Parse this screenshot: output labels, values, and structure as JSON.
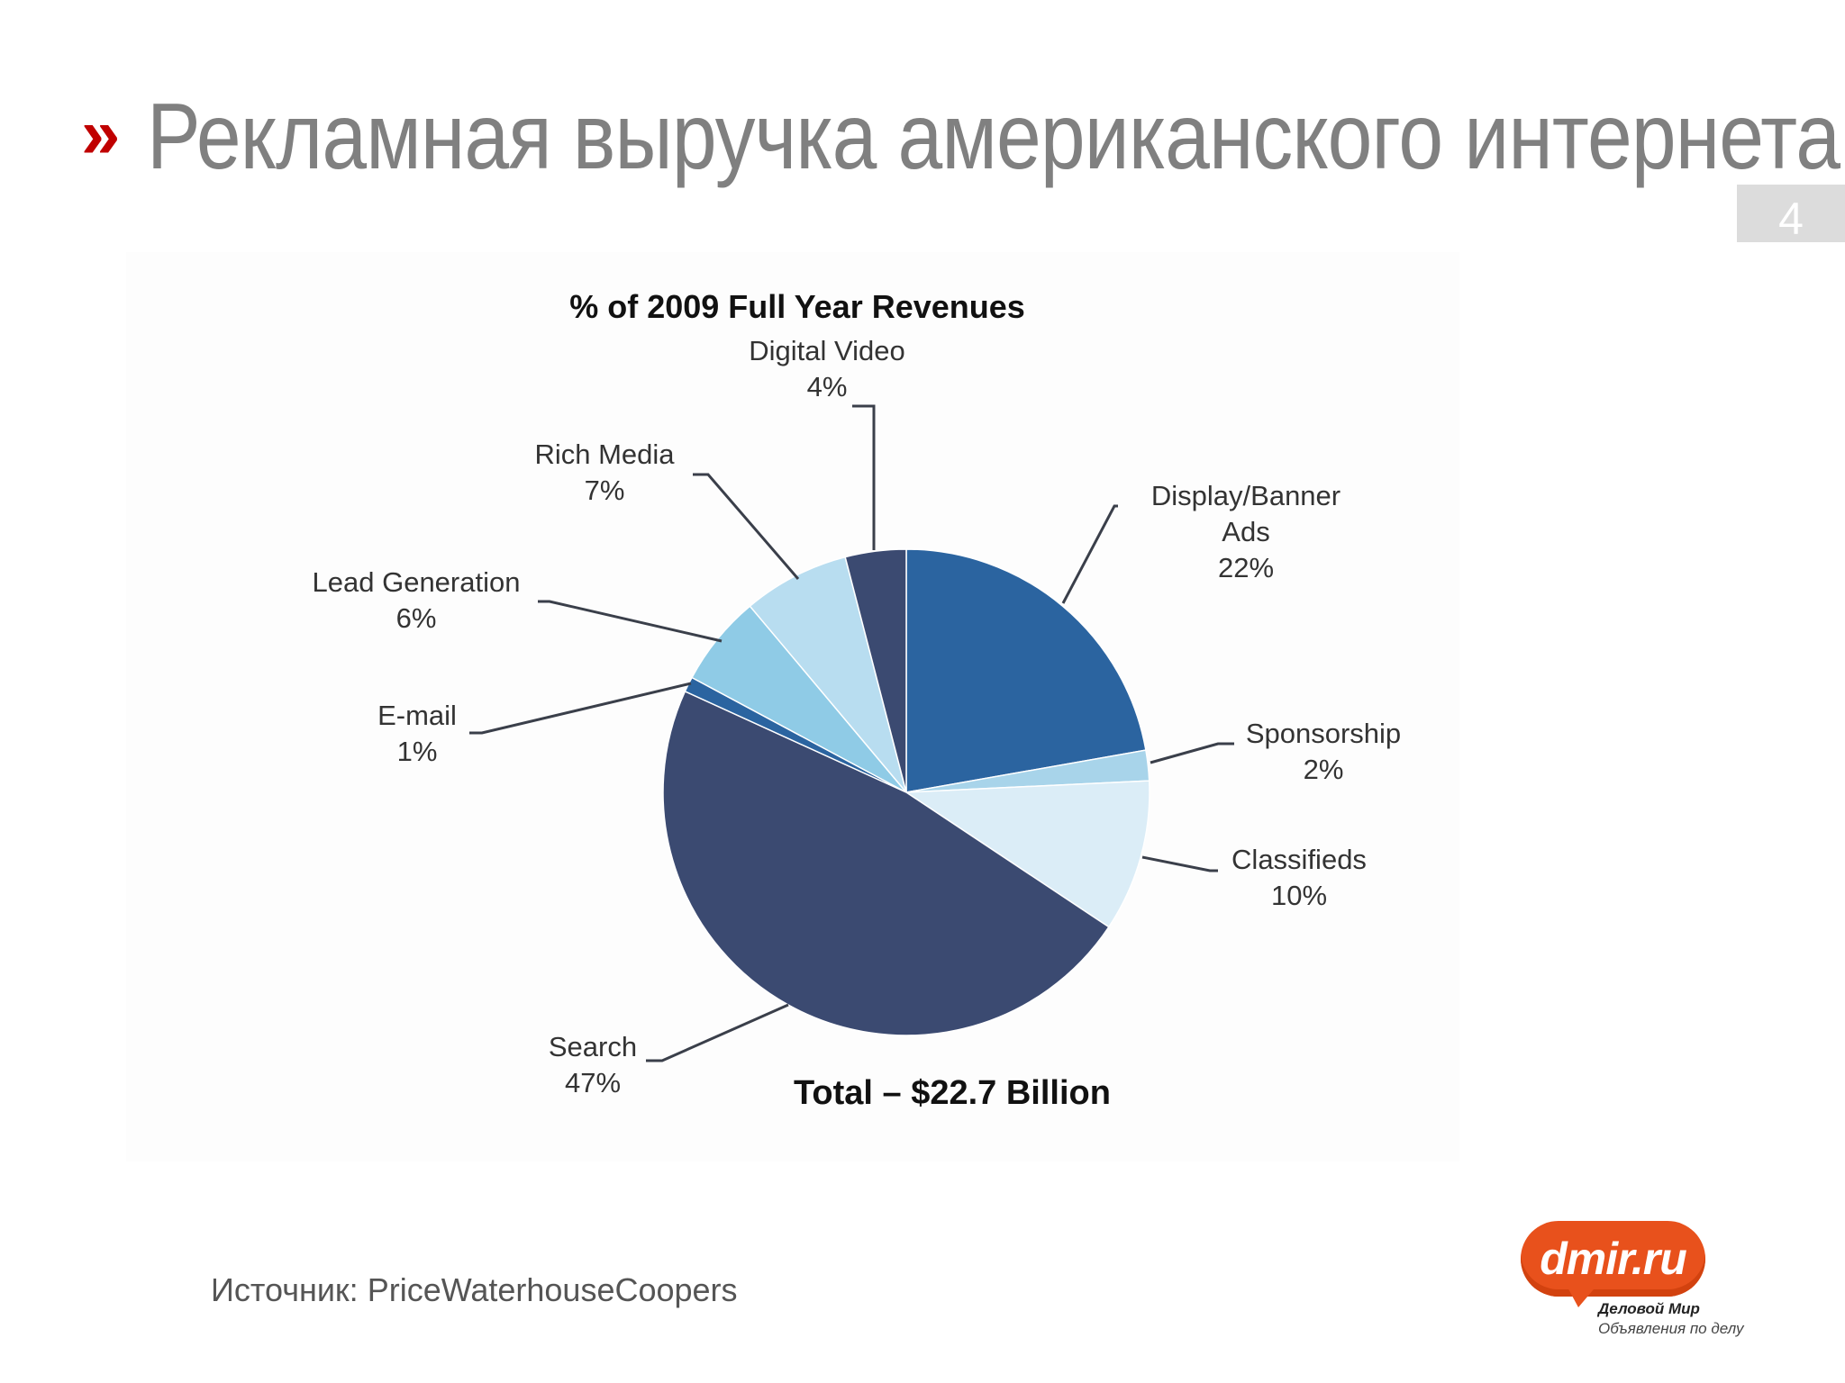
{
  "slide": {
    "marker": "»",
    "title": "Рекламная выручка американского интернета",
    "page_number": "4",
    "source": "Источник: PriceWaterhouseCoopers"
  },
  "logo": {
    "name": "dmir.ru",
    "line1": "Деловой Мир",
    "line2": "Объявления по делу"
  },
  "colors": {
    "title_gray": "#808080",
    "marker_red": "#c00000",
    "logo_orange": "#e8511c"
  },
  "chart_data": {
    "type": "pie",
    "title": "% of 2009 Full Year Revenues",
    "footnote": "Total – $22.7 Billion",
    "start": "12 o'clock",
    "direction": "clockwise",
    "slices": [
      {
        "name": "Display/Banner Ads",
        "value": 22,
        "label_lines": [
          "Display/Banner",
          "Ads",
          "22%"
        ],
        "color": "#2b64a0"
      },
      {
        "name": "Sponsorship",
        "value": 2,
        "label_lines": [
          "Sponsorship",
          "2%"
        ],
        "color": "#a8d4ea"
      },
      {
        "name": "Classifieds",
        "value": 10,
        "label_lines": [
          "Classifieds",
          "10%"
        ],
        "color": "#dbedf7"
      },
      {
        "name": "Search",
        "value": 47,
        "label_lines": [
          "Search",
          "47%"
        ],
        "color": "#3b4a71"
      },
      {
        "name": "E-mail",
        "value": 1,
        "label_lines": [
          "E-mail",
          "1%"
        ],
        "color": "#2b64a0"
      },
      {
        "name": "Lead Generation",
        "value": 6,
        "label_lines": [
          "Lead Generation",
          "6%"
        ],
        "color": "#8fcbe6"
      },
      {
        "name": "Rich Media",
        "value": 7,
        "label_lines": [
          "Rich Media",
          "7%"
        ],
        "color": "#b8ddf0"
      },
      {
        "name": "Digital Video",
        "value": 4,
        "label_lines": [
          "Digital Video",
          "4%"
        ],
        "color": "#3b4a71"
      }
    ]
  }
}
